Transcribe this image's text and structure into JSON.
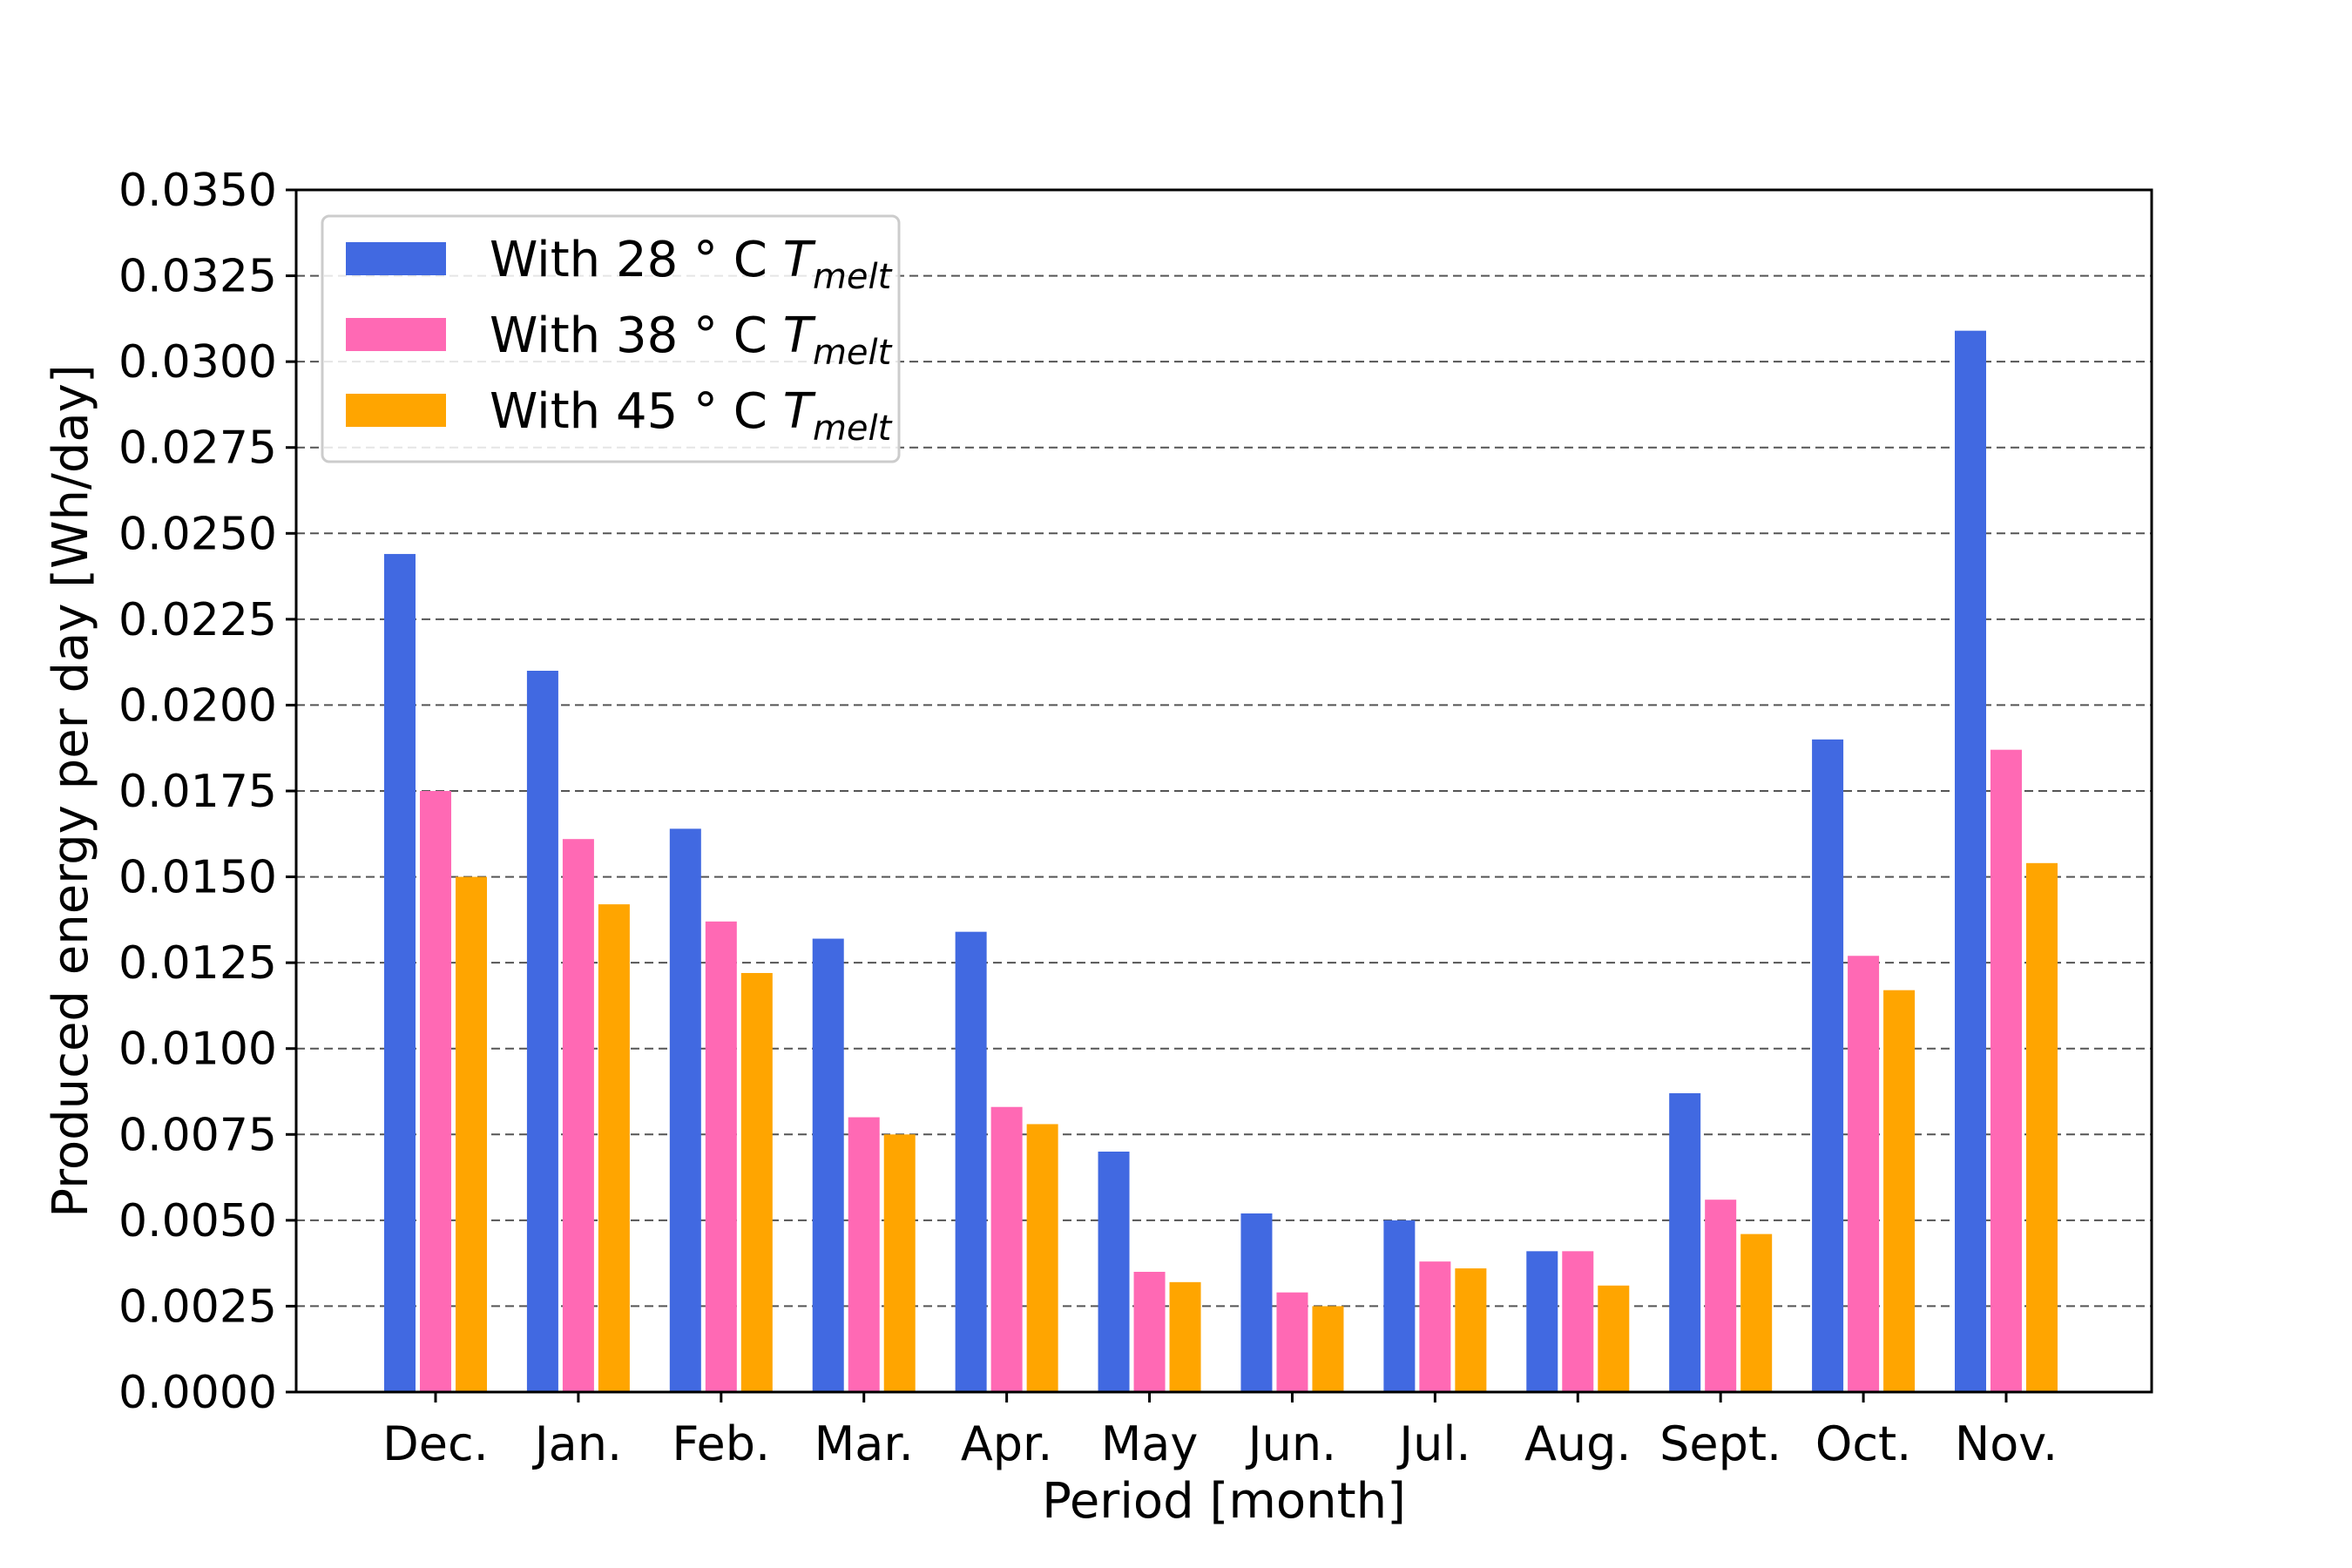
{
  "chart_data": {
    "type": "bar",
    "xlabel": "Period [month]",
    "ylabel": "Produced energy per day [Wh/day]",
    "categories": [
      "Dec.",
      "Jan.",
      "Feb.",
      "Mar.",
      "Apr.",
      "May",
      "Jun.",
      "Jul.",
      "Aug.",
      "Sept.",
      "Oct.",
      "Nov."
    ],
    "ylim": [
      0,
      0.035
    ],
    "yticks": [
      "0.0000",
      "0.0025",
      "0.0050",
      "0.0075",
      "0.0100",
      "0.0125",
      "0.0150",
      "0.0175",
      "0.0200",
      "0.0225",
      "0.0250",
      "0.0275",
      "0.0300",
      "0.0325",
      "0.0350"
    ],
    "grid": "horizontal dashed",
    "legend_position": "top-left",
    "series": [
      {
        "name": "With 28 ° C T_melt",
        "legend_main": "With 28 ° C ",
        "legend_symbol": "T",
        "legend_subscript": "melt",
        "color": "#4169e1",
        "values": [
          0.0244,
          0.021,
          0.0164,
          0.0132,
          0.0134,
          0.007,
          0.0052,
          0.005,
          0.0041,
          0.0087,
          0.019,
          0.0309
        ]
      },
      {
        "name": "With 38 ° C T_melt",
        "legend_main": "With 38 ° C ",
        "legend_symbol": "T",
        "legend_subscript": "melt",
        "color": "#ff69b4",
        "values": [
          0.0175,
          0.0161,
          0.0137,
          0.008,
          0.0083,
          0.0035,
          0.0029,
          0.0038,
          0.0041,
          0.0056,
          0.0127,
          0.0187
        ]
      },
      {
        "name": "With 45 ° C T_melt",
        "legend_main": "With 45 ° C ",
        "legend_symbol": "T",
        "legend_subscript": "melt",
        "color": "#ffa500",
        "values": [
          0.015,
          0.0142,
          0.0122,
          0.0075,
          0.0078,
          0.0032,
          0.0025,
          0.0036,
          0.0031,
          0.0046,
          0.0117,
          0.0154
        ]
      }
    ]
  }
}
